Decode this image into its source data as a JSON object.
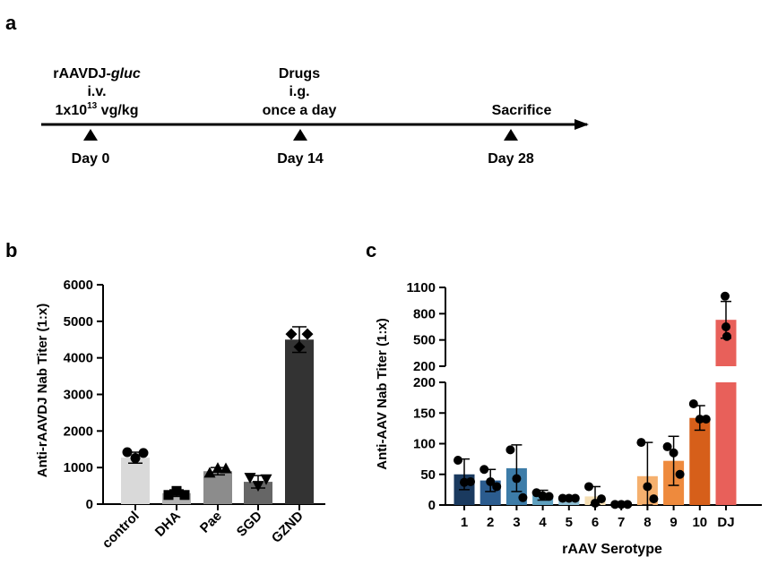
{
  "panel_labels": {
    "a": "a",
    "b": "b",
    "c": "c"
  },
  "timeline": {
    "events": [
      {
        "top_lines": [
          "rAAVDJ-gluc",
          "i.v.",
          "1x1013 vg/kg"
        ],
        "day": "Day 0"
      },
      {
        "top_lines": [
          "Drugs",
          "i.g.",
          "once a day"
        ],
        "day": "Day 14"
      },
      {
        "top_lines": [
          "Sacrifice"
        ],
        "day": "Day 28"
      }
    ],
    "construct_prefix": "rAAVDJ-",
    "construct_italic": "gluc",
    "dose_prefix": "1x10",
    "dose_exponent": "13",
    "dose_suffix": " vg/kg"
  },
  "chart_data": [
    {
      "type": "bar",
      "panel": "b",
      "title": "",
      "xlabel": "",
      "ylabel": "Anti-rAAVDJ Nab Titer (1:x)",
      "ylim": [
        0,
        6000
      ],
      "yticks": [
        0,
        1000,
        2000,
        3000,
        4000,
        5000,
        6000
      ],
      "categories": [
        "control",
        "DHA",
        "Pae",
        "SGD",
        "GZND"
      ],
      "values": [
        1270,
        300,
        900,
        610,
        4500
      ],
      "error": [
        150,
        90,
        100,
        170,
        350
      ],
      "colors": [
        "#d9d9d9",
        "#b3b3b3",
        "#8c8c8c",
        "#666666",
        "#333333"
      ],
      "marker_shapes": [
        "circle",
        "square",
        "triangle-up",
        "triangle-down",
        "diamond"
      ],
      "points": [
        [
          1420,
          1260,
          1400
        ],
        [
          250,
          360,
          250
        ],
        [
          860,
          990,
          980
        ],
        [
          720,
          500,
          680
        ],
        [
          4650,
          4300,
          4650
        ]
      ]
    },
    {
      "type": "bar",
      "panel": "c",
      "title": "",
      "xlabel": "rAAV Serotype",
      "ylabel": "Anti-AAV Nab Titer (1:x)",
      "broken_axis": true,
      "lower_ylim": [
        0,
        200
      ],
      "lower_yticks": [
        0,
        50,
        100,
        150,
        200
      ],
      "upper_ylim": [
        200,
        1100
      ],
      "upper_yticks": [
        200,
        500,
        800,
        1100
      ],
      "categories": [
        "1",
        "2",
        "3",
        "4",
        "5",
        "6",
        "7",
        "8",
        "9",
        "10",
        "DJ"
      ],
      "values": [
        50,
        40,
        60,
        16,
        11,
        14,
        1,
        47,
        72,
        142,
        730
      ],
      "error": [
        25,
        18,
        38,
        8,
        0,
        16,
        0,
        55,
        40,
        20,
        210
      ],
      "colors": [
        "#1a3a5f",
        "#2b5c8f",
        "#3d7ca8",
        "#5fa0bf",
        "#8dbdd3",
        "#f5deb3",
        "#fbd6a6",
        "#f5b06e",
        "#ee8a3d",
        "#d65f1a",
        "#e8605a"
      ],
      "points": [
        [
          73,
          37,
          38
        ],
        [
          58,
          38,
          30
        ],
        [
          90,
          43,
          12
        ],
        [
          20,
          15,
          14
        ],
        [
          11,
          11,
          11
        ],
        [
          30,
          3,
          10
        ],
        [
          1,
          1,
          1
        ],
        [
          102,
          30,
          10
        ],
        [
          95,
          85,
          50
        ],
        [
          165,
          140,
          140
        ],
        [
          1000,
          650,
          540
        ]
      ]
    }
  ]
}
